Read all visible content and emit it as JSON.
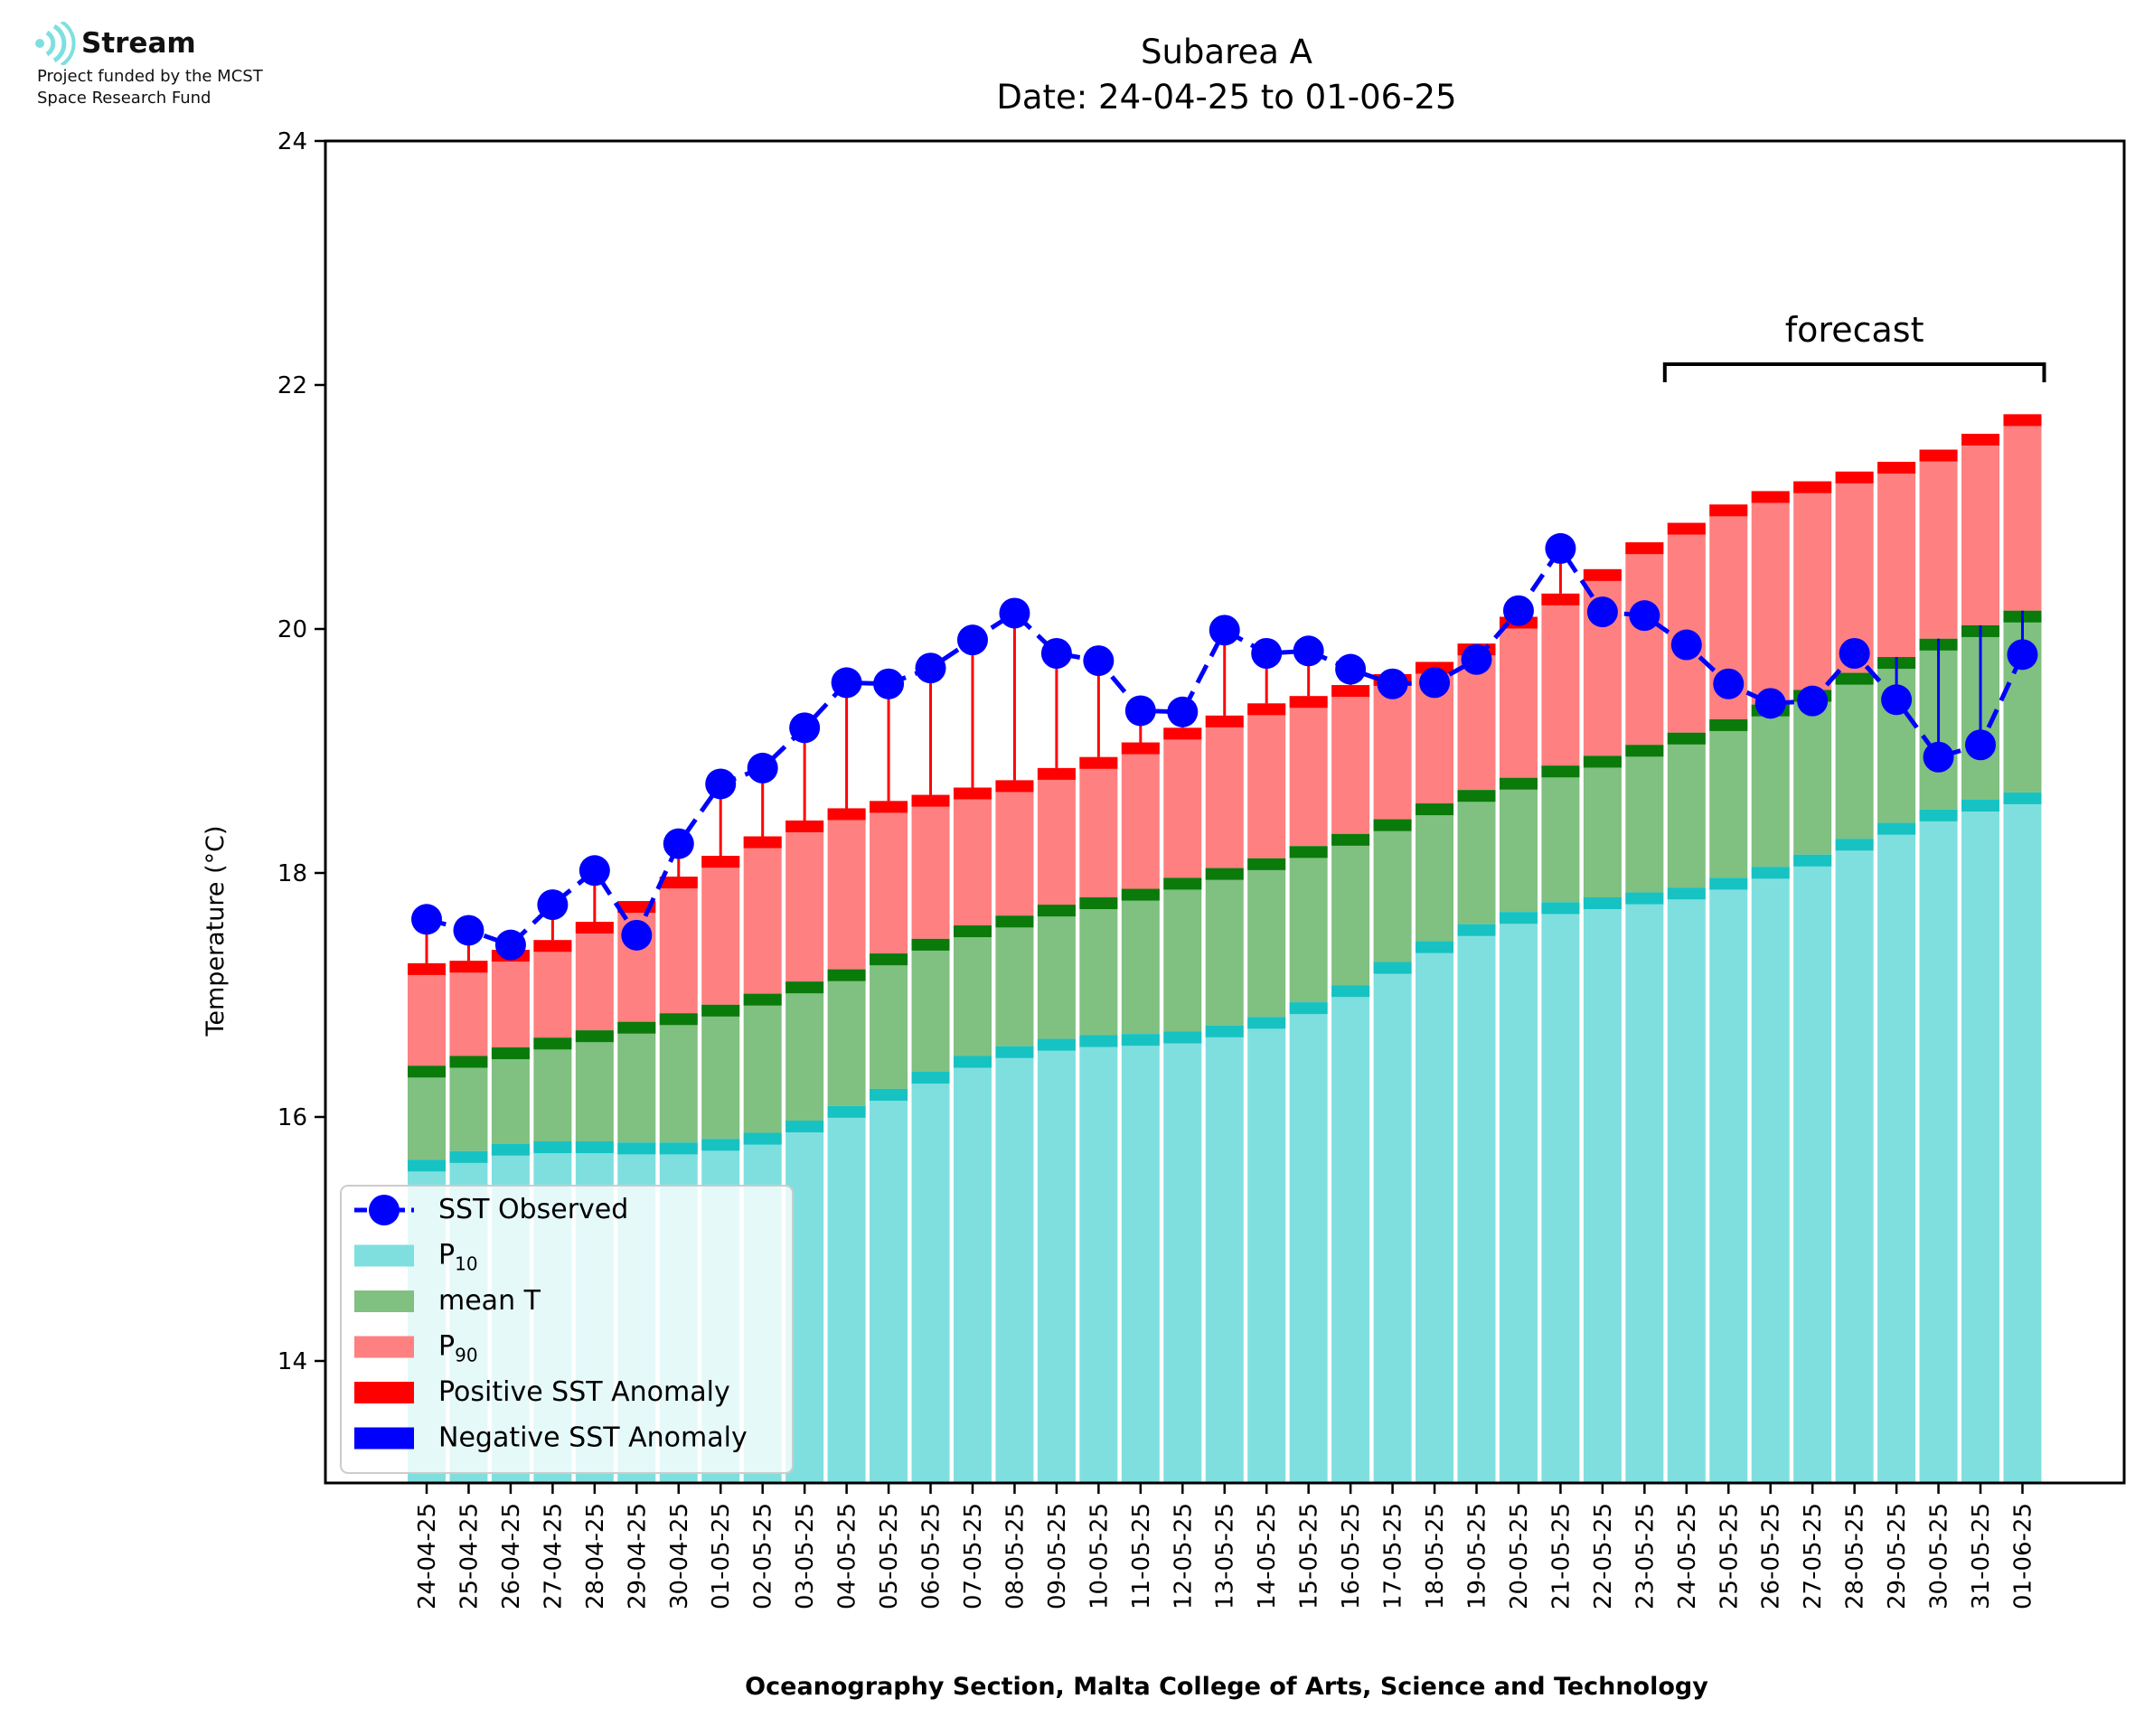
{
  "logo": {
    "name": "Stream",
    "line1": "Project funded by the MCST",
    "line2": "Space Research Fund"
  },
  "footer": "Oceanography Section, Malta College of Arts, Science and Technology",
  "colors": {
    "p10": "#7fdfdf",
    "p10_cap": "#17c2c2",
    "mean": "#80c080",
    "mean_cap": "#0a7a0a",
    "p90": "#ff8080",
    "p90_cap": "#ff0000",
    "observed": "#0000ff",
    "positive_anomaly": "#ff0000",
    "negative_anomaly": "#0000ff"
  },
  "chart_data": {
    "type": "bar",
    "title": "Subarea A",
    "subtitle": "Date: 24-04-25 to 01-06-25",
    "ylabel": "Temperature (°C)",
    "ylim": [
      13,
      24
    ],
    "yticks": [
      "14",
      "16",
      "18",
      "20",
      "22",
      "24"
    ],
    "annotation": "forecast",
    "forecast_range": [
      "24-05-25",
      "01-06-25"
    ],
    "legend": {
      "position": "lower-left",
      "entries": [
        {
          "label": "SST Observed",
          "kind": "line-marker"
        },
        {
          "label": "P",
          "sub": "10",
          "kind": "patch-p10"
        },
        {
          "label": "mean T",
          "kind": "patch-mean"
        },
        {
          "label": "P",
          "sub": "90",
          "kind": "patch-p90"
        },
        {
          "label": "Positive SST Anomaly",
          "kind": "patch-pos"
        },
        {
          "label": "Negative SST Anomaly",
          "kind": "patch-neg"
        }
      ]
    },
    "categories": [
      "24-04-25",
      "25-04-25",
      "26-04-25",
      "27-04-25",
      "28-04-25",
      "29-04-25",
      "30-04-25",
      "01-05-25",
      "02-05-25",
      "03-05-25",
      "04-05-25",
      "05-05-25",
      "06-05-25",
      "07-05-25",
      "08-05-25",
      "09-05-25",
      "10-05-25",
      "11-05-25",
      "12-05-25",
      "13-05-25",
      "14-05-25",
      "15-05-25",
      "16-05-25",
      "17-05-25",
      "18-05-25",
      "19-05-25",
      "20-05-25",
      "21-05-25",
      "22-05-25",
      "23-05-25",
      "24-05-25",
      "25-05-25",
      "26-05-25",
      "27-05-25",
      "28-05-25",
      "29-05-25",
      "30-05-25",
      "31-05-25",
      "01-06-25"
    ],
    "series": [
      {
        "name": "P10",
        "values": [
          15.65,
          15.72,
          15.78,
          15.8,
          15.8,
          15.79,
          15.79,
          15.82,
          15.87,
          15.97,
          16.09,
          16.23,
          16.37,
          16.5,
          16.58,
          16.64,
          16.67,
          16.68,
          16.7,
          16.75,
          16.82,
          16.94,
          17.08,
          17.27,
          17.44,
          17.58,
          17.68,
          17.76,
          17.8,
          17.84,
          17.88,
          17.96,
          18.05,
          18.15,
          18.28,
          18.41,
          18.52,
          18.6,
          18.66
        ]
      },
      {
        "name": "mean T",
        "values": [
          16.42,
          16.5,
          16.57,
          16.65,
          16.71,
          16.78,
          16.85,
          16.92,
          17.01,
          17.11,
          17.21,
          17.34,
          17.46,
          17.57,
          17.65,
          17.74,
          17.8,
          17.87,
          17.96,
          18.04,
          18.12,
          18.22,
          18.32,
          18.44,
          18.57,
          18.68,
          18.78,
          18.88,
          18.96,
          19.05,
          19.15,
          19.26,
          19.38,
          19.5,
          19.64,
          19.77,
          19.92,
          20.03,
          20.15
        ]
      },
      {
        "name": "P90",
        "values": [
          17.26,
          17.28,
          17.37,
          17.45,
          17.6,
          17.77,
          17.97,
          18.14,
          18.3,
          18.43,
          18.53,
          18.59,
          18.64,
          18.7,
          18.76,
          18.86,
          18.95,
          19.07,
          19.19,
          19.29,
          19.39,
          19.45,
          19.54,
          19.63,
          19.73,
          19.88,
          20.1,
          20.29,
          20.49,
          20.71,
          20.87,
          21.02,
          21.13,
          21.21,
          21.29,
          21.37,
          21.47,
          21.6,
          21.76
        ]
      },
      {
        "name": "SST Observed",
        "values": [
          17.62,
          17.53,
          17.41,
          17.74,
          18.02,
          17.49,
          18.24,
          18.73,
          18.86,
          19.19,
          19.56,
          19.55,
          19.68,
          19.91,
          20.13,
          19.8,
          19.74,
          19.33,
          19.32,
          19.99,
          19.8,
          19.82,
          19.67,
          19.55,
          19.56,
          19.75,
          20.15,
          20.66,
          20.14,
          20.11,
          19.87,
          19.55,
          19.39,
          19.41,
          19.8,
          19.42,
          18.95,
          19.05,
          19.79
        ]
      }
    ],
    "grid": false
  }
}
